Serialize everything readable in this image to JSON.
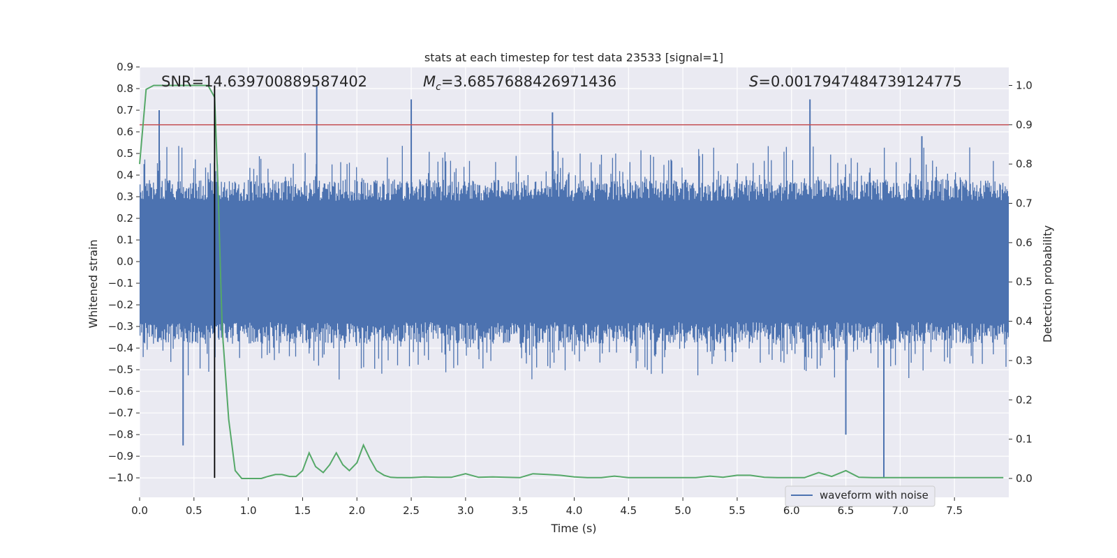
{
  "chart_data": {
    "type": "line",
    "title": "stats at each timestep for test data 23533 [signal=1]",
    "xlabel": "Time (s)",
    "ylabel": "Whitened strain",
    "y2label": "Detection probability",
    "xlim": [
      0.0,
      8.0
    ],
    "ylim": [
      -1.09,
      0.9
    ],
    "y2lim": [
      -0.048,
      1.047
    ],
    "grid": true,
    "x_ticks": [
      "0.0",
      "0.5",
      "1.0",
      "1.5",
      "2.0",
      "2.5",
      "3.0",
      "3.5",
      "4.0",
      "4.5",
      "5.0",
      "5.5",
      "6.0",
      "6.5",
      "7.0",
      "7.5"
    ],
    "y_ticks": [
      "0.9",
      "0.8",
      "0.7",
      "0.6",
      "0.5",
      "0.4",
      "0.3",
      "0.2",
      "0.1",
      "0.0",
      "−0.1",
      "−0.2",
      "−0.3",
      "−0.4",
      "−0.5",
      "−0.6",
      "−0.7",
      "−0.8",
      "−0.9",
      "−1.0"
    ],
    "y2_ticks": [
      "1.0",
      "0.9",
      "0.8",
      "0.7",
      "0.6",
      "0.5",
      "0.4",
      "0.3",
      "0.2",
      "0.1",
      "0.0"
    ],
    "annotations": {
      "snr": "SNR=14.639700889587402",
      "mc_symbol": "M",
      "mc_sub": "c",
      "mc_value": "=3.6857688426971436",
      "s_symbol": "S",
      "s_value": "=0.0017947484739124775"
    },
    "legend": {
      "position": "lower-right",
      "entries": [
        "waveform with noise"
      ]
    },
    "threshold": {
      "axis": "right",
      "value": 0.9,
      "color": "#c44e52"
    },
    "marker_time": 0.69,
    "series": [
      {
        "name": "waveform with noise",
        "axis": "left",
        "color": "#4c72b0",
        "envelope": {
          "core_amplitude": 0.28,
          "typical_peak": [
            0.38,
            0.55
          ],
          "peaks": [
            {
              "x": 0.18,
              "y": 0.7
            },
            {
              "x": 0.4,
              "y": -0.85
            },
            {
              "x": 1.63,
              "y": 0.81
            },
            {
              "x": 2.5,
              "y": 0.75
            },
            {
              "x": 3.8,
              "y": 0.69
            },
            {
              "x": 6.17,
              "y": 0.75
            },
            {
              "x": 6.5,
              "y": -0.8
            },
            {
              "x": 6.85,
              "y": -1.0
            },
            {
              "x": 7.2,
              "y": 0.58
            }
          ]
        }
      },
      {
        "name": "",
        "axis": "right",
        "color": "#55a868",
        "x": [
          0.0,
          0.06,
          0.13,
          0.2,
          0.3,
          0.4,
          0.5,
          0.63,
          0.69,
          0.72,
          0.76,
          0.82,
          0.88,
          0.94,
          1.0,
          1.06,
          1.12,
          1.18,
          1.25,
          1.31,
          1.38,
          1.44,
          1.5,
          1.56,
          1.62,
          1.69,
          1.75,
          1.81,
          1.87,
          1.93,
          2.0,
          2.06,
          2.12,
          2.18,
          2.25,
          2.31,
          2.37,
          2.5,
          2.62,
          2.75,
          2.87,
          3.0,
          3.12,
          3.25,
          3.37,
          3.5,
          3.62,
          3.75,
          3.87,
          4.0,
          4.12,
          4.25,
          4.37,
          4.5,
          4.62,
          4.75,
          4.87,
          5.0,
          5.12,
          5.25,
          5.37,
          5.5,
          5.62,
          5.75,
          5.87,
          6.0,
          6.12,
          6.25,
          6.37,
          6.5,
          6.62,
          6.75,
          6.87,
          7.0,
          7.25,
          7.5,
          7.75,
          7.95
        ],
        "values": [
          0.8,
          0.99,
          1.0,
          1.0,
          1.0,
          1.0,
          1.0,
          1.0,
          0.97,
          0.75,
          0.38,
          0.15,
          0.02,
          0.0,
          0.0,
          0.0,
          0.0,
          0.005,
          0.01,
          0.01,
          0.005,
          0.005,
          0.02,
          0.065,
          0.03,
          0.015,
          0.035,
          0.065,
          0.035,
          0.02,
          0.04,
          0.085,
          0.05,
          0.02,
          0.008,
          0.003,
          0.002,
          0.002,
          0.004,
          0.003,
          0.003,
          0.012,
          0.003,
          0.004,
          0.003,
          0.002,
          0.012,
          0.01,
          0.008,
          0.004,
          0.002,
          0.002,
          0.006,
          0.002,
          0.002,
          0.002,
          0.002,
          0.002,
          0.002,
          0.006,
          0.003,
          0.008,
          0.008,
          0.003,
          0.002,
          0.002,
          0.002,
          0.015,
          0.005,
          0.02,
          0.003,
          0.002,
          0.002,
          0.002,
          0.002,
          0.002,
          0.002,
          0.002
        ]
      }
    ]
  }
}
